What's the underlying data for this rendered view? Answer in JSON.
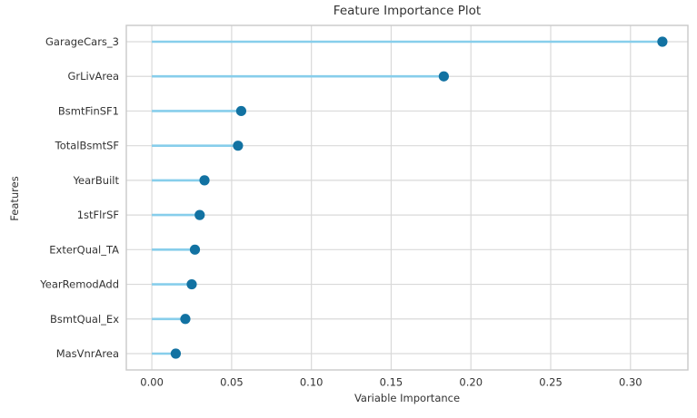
{
  "title": "Feature Importance Plot",
  "chart_data": {
    "type": "bar",
    "style": "lollipop-horizontal",
    "title": "Feature Importance Plot",
    "xlabel": "Variable Importance",
    "ylabel": "Features",
    "categories": [
      "GarageCars_3",
      "GrLivArea",
      "BsmtFinSF1",
      "TotalBsmtSF",
      "YearBuilt",
      "1stFlrSF",
      "ExterQual_TA",
      "YearRemodAdd",
      "BsmtQual_Ex",
      "MasVnrArea"
    ],
    "values": [
      0.32,
      0.183,
      0.056,
      0.054,
      0.033,
      0.03,
      0.027,
      0.025,
      0.021,
      0.015
    ],
    "x_ticks": [
      0.0,
      0.05,
      0.1,
      0.15,
      0.2,
      0.25,
      0.3
    ],
    "x_tick_labels": [
      "0.00",
      "0.05",
      "0.10",
      "0.15",
      "0.20",
      "0.25",
      "0.30"
    ],
    "xlim": [
      -0.016,
      0.336
    ],
    "grid": true,
    "legend": "none",
    "colors": {
      "stem": "#87ceeb",
      "dot": "#1272a2",
      "grid": "#d9d9d9",
      "border": "#c9c9c9",
      "text": "#333333",
      "background": "#ffffff"
    }
  }
}
